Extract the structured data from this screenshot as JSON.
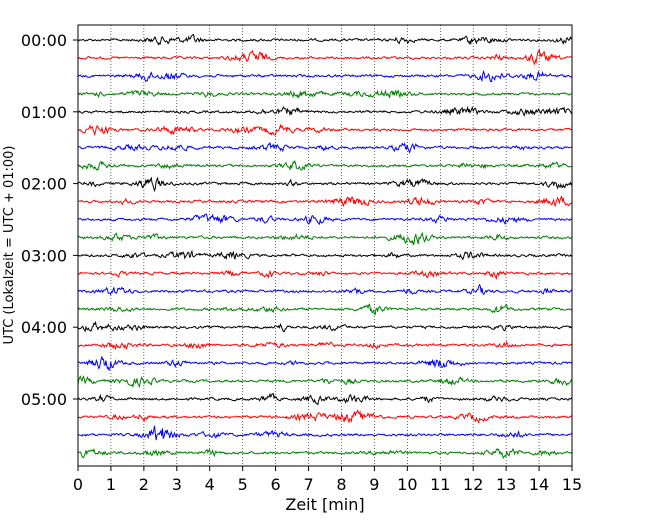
{
  "chart_data": {
    "type": "line",
    "xlabel": "Zeit  [min]",
    "ylabel": "UTC (Lokalzeit = UTC + 01:00)",
    "xlim": [
      0,
      15
    ],
    "x_ticks": [
      "0",
      "1",
      "2",
      "3",
      "4",
      "5",
      "6",
      "7",
      "8",
      "9",
      "10",
      "11",
      "12",
      "13",
      "14",
      "15"
    ],
    "y_ticks": [
      {
        "label": "00:00",
        "row": 0
      },
      {
        "label": "01:00",
        "row": 4
      },
      {
        "label": "02:00",
        "row": 8
      },
      {
        "label": "03:00",
        "row": 12
      },
      {
        "label": "04:00",
        "row": 16
      },
      {
        "label": "05:00",
        "row": 20
      }
    ],
    "grid": "vertical dotted at each minute",
    "rows_per_hour": 4,
    "minutes_per_row": 15,
    "row_count": 24,
    "series_colors": [
      "#000000",
      "#ff0000",
      "#0000ff",
      "#008000"
    ],
    "series": [
      {
        "start": "00:00",
        "color": "#000000"
      },
      {
        "start": "00:15",
        "color": "#ff0000"
      },
      {
        "start": "00:30",
        "color": "#0000ff"
      },
      {
        "start": "00:45",
        "color": "#008000"
      },
      {
        "start": "01:00",
        "color": "#000000"
      },
      {
        "start": "01:15",
        "color": "#ff0000"
      },
      {
        "start": "01:30",
        "color": "#0000ff"
      },
      {
        "start": "01:45",
        "color": "#008000"
      },
      {
        "start": "02:00",
        "color": "#000000"
      },
      {
        "start": "02:15",
        "color": "#ff0000"
      },
      {
        "start": "02:30",
        "color": "#0000ff"
      },
      {
        "start": "02:45",
        "color": "#008000"
      },
      {
        "start": "03:00",
        "color": "#000000"
      },
      {
        "start": "03:15",
        "color": "#ff0000"
      },
      {
        "start": "03:30",
        "color": "#0000ff"
      },
      {
        "start": "03:45",
        "color": "#008000"
      },
      {
        "start": "04:00",
        "color": "#000000"
      },
      {
        "start": "04:15",
        "color": "#ff0000"
      },
      {
        "start": "04:30",
        "color": "#0000ff"
      },
      {
        "start": "04:45",
        "color": "#008000"
      },
      {
        "start": "05:00",
        "color": "#000000"
      },
      {
        "start": "05:15",
        "color": "#ff0000"
      },
      {
        "start": "05:30",
        "color": "#0000ff"
      },
      {
        "start": "05:45",
        "color": "#008000"
      }
    ]
  }
}
